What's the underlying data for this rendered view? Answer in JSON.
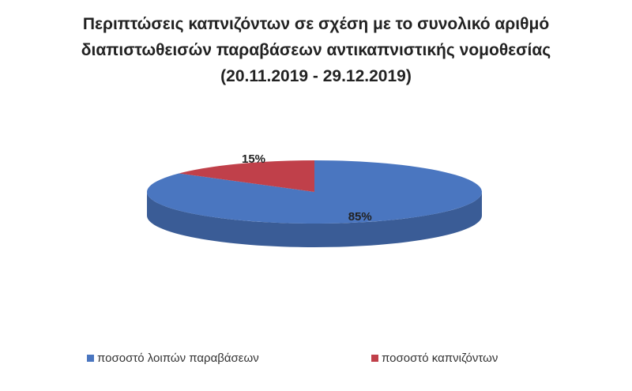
{
  "chart_data": {
    "type": "pie3d",
    "title": "Περιπτώσεις καπνιζόντων σε σχέση με το συνολικό αριθμό διαπιστωθεισών παραβάσεων αντικαπνιστικής νομοθεσίας (20.11.2019 - 29.12.2019)",
    "categories": [
      "ποσοστό λοιπών παραβάσεων",
      "ποσοστό καπνιζόντων"
    ],
    "values": [
      85,
      15
    ],
    "value_labels": [
      "85%",
      "15%"
    ],
    "colors": [
      "#4a76c0",
      "#c0404a"
    ],
    "legend": "bottom"
  }
}
